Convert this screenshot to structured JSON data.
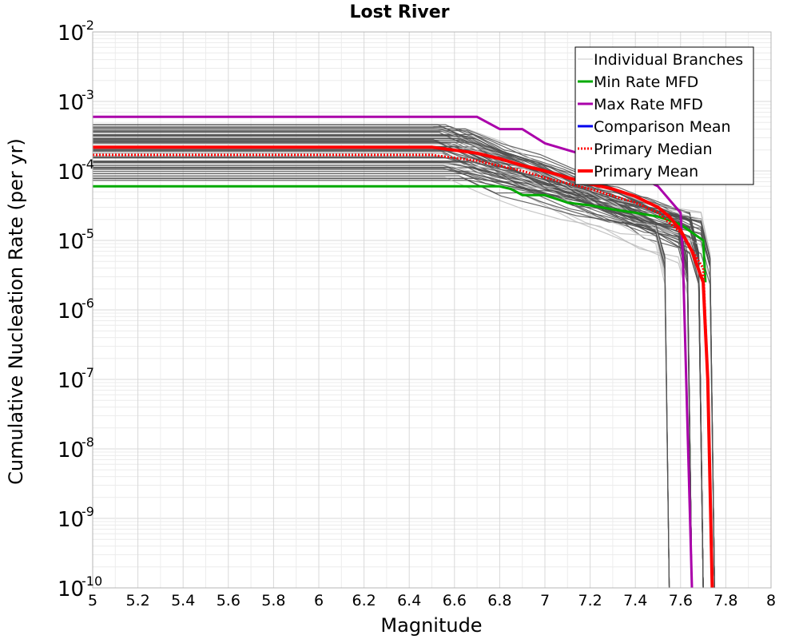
{
  "chart_data": {
    "type": "line",
    "title": "Lost River",
    "xlabel": "Magnitude",
    "ylabel": "Cumulative Nucleation Rate (per yr)",
    "x_scale": "linear",
    "y_scale": "log",
    "xlim": [
      5,
      8
    ],
    "ylim": [
      1e-10,
      0.01
    ],
    "grid": true,
    "x_ticks": [
      "5",
      "5.2",
      "5.4",
      "5.6",
      "5.8",
      "6",
      "6.2",
      "6.4",
      "6.6",
      "6.8",
      "7",
      "7.2",
      "7.4",
      "7.6",
      "7.8",
      "8"
    ],
    "y_ticks": [
      {
        "base": "10",
        "exp": "-2"
      },
      {
        "base": "10",
        "exp": "-3"
      },
      {
        "base": "10",
        "exp": "-4"
      },
      {
        "base": "10",
        "exp": "-5"
      },
      {
        "base": "10",
        "exp": "-6"
      },
      {
        "base": "10",
        "exp": "-7"
      },
      {
        "base": "10",
        "exp": "-8"
      },
      {
        "base": "10",
        "exp": "-9"
      },
      {
        "base": "10",
        "exp": "-10"
      }
    ],
    "legend_position": "top-right",
    "legend": [
      {
        "label": "Individual Branches",
        "color": "#c8c8c8",
        "style": "solid",
        "width": 1
      },
      {
        "label": "Min Rate MFD",
        "color": "#00aa00",
        "style": "solid",
        "width": 3
      },
      {
        "label": "Max Rate MFD",
        "color": "#aa00aa",
        "style": "solid",
        "width": 3
      },
      {
        "label": "Comparison Mean",
        "color": "#0000ee",
        "style": "solid",
        "width": 3
      },
      {
        "label": "Primary Median",
        "color": "#ff0000",
        "style": "dotted",
        "width": 3
      },
      {
        "label": "Primary Mean",
        "color": "#ff0000",
        "style": "solid",
        "width": 4
      }
    ],
    "branches": {
      "description": "many individual logic-tree branch MFDs",
      "color_dark": "#4d4d4d",
      "color_light": "#bdbdbd",
      "count": 70,
      "plateau_range": [
        7e-05,
        0.0005
      ],
      "truncation_magnitudes": [
        7.55,
        7.65,
        7.7,
        7.75
      ]
    },
    "series": [
      {
        "name": "Min Rate MFD",
        "color": "#00aa00",
        "width": 3,
        "style": "solid",
        "x": [
          5.0,
          6.5,
          6.8,
          6.85,
          6.9,
          7.0,
          7.1,
          7.2,
          7.3,
          7.4,
          7.5,
          7.6,
          7.7,
          7.71
        ],
        "y": [
          6e-05,
          6e-05,
          6e-05,
          5.5e-05,
          4.5e-05,
          4.5e-05,
          3.5e-05,
          3.2e-05,
          2.8e-05,
          2.5e-05,
          2.2e-05,
          1.7e-05,
          1e-05,
          2.5e-06
        ]
      },
      {
        "name": "Max Rate MFD",
        "color": "#aa00aa",
        "width": 3,
        "style": "solid",
        "x": [
          5.0,
          6.5,
          6.7,
          6.8,
          6.9,
          7.0,
          7.1,
          7.2,
          7.3,
          7.4,
          7.5,
          7.6,
          7.61,
          7.65
        ],
        "y": [
          0.0006,
          0.0006,
          0.0006,
          0.0004,
          0.0004,
          0.00025,
          0.0002,
          0.00016,
          0.00012,
          9e-05,
          6e-05,
          2.5e-05,
          6e-06,
          1e-10
        ]
      },
      {
        "name": "Primary Median",
        "color": "#ff0000",
        "width": 3,
        "style": "dotted",
        "x": [
          5.0,
          6.5,
          6.7,
          6.9,
          7.0,
          7.2,
          7.4,
          7.5,
          7.6,
          7.7,
          7.72,
          7.74
        ],
        "y": [
          0.00017,
          0.00017,
          0.00014,
          0.0001,
          8e-05,
          5.5e-05,
          3.5e-05,
          2.5e-05,
          1.3e-05,
          4e-06,
          1e-07,
          1e-10
        ]
      },
      {
        "name": "Primary Mean",
        "color": "#ff0000",
        "width": 4,
        "style": "solid",
        "x": [
          5.0,
          6.5,
          6.7,
          6.8,
          6.9,
          7.0,
          7.1,
          7.2,
          7.3,
          7.4,
          7.5,
          7.55,
          7.6,
          7.65,
          7.7,
          7.72,
          7.74
        ],
        "y": [
          0.00022,
          0.00022,
          0.00018,
          0.00015,
          0.00012,
          0.0001,
          8e-05,
          6.5e-05,
          5.5e-05,
          4.3e-05,
          3e-05,
          2.2e-05,
          1.4e-05,
          7e-06,
          2.5e-06,
          1e-07,
          1e-10
        ]
      }
    ]
  }
}
